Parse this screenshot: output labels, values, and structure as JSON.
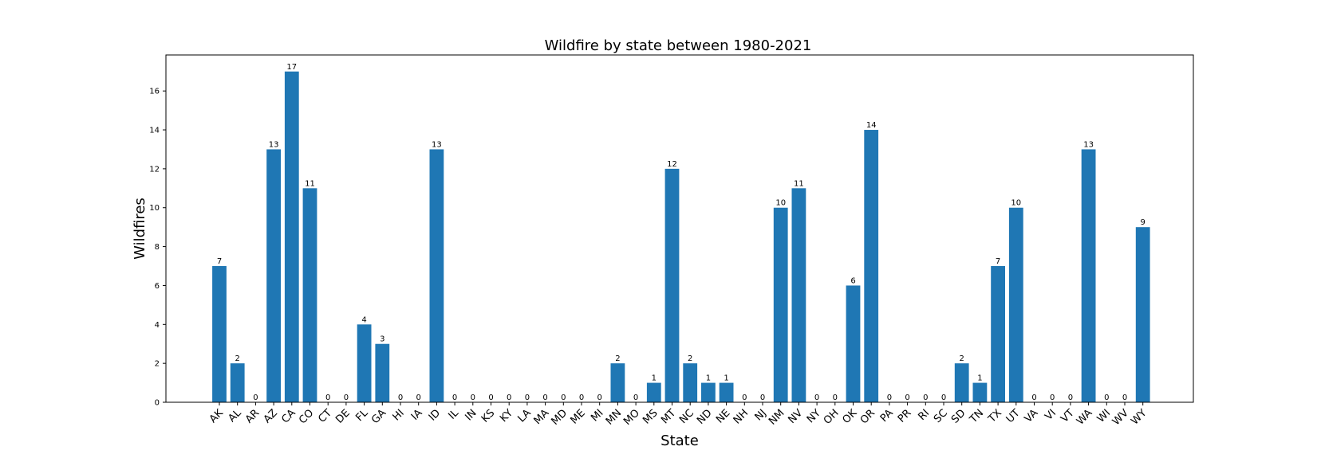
{
  "chart_data": {
    "type": "bar",
    "title": "Wildfire by state between 1980-2021",
    "xlabel": "State",
    "ylabel": "Wildfires",
    "ylim": [
      0,
      17.85
    ],
    "yticks": [
      0,
      2,
      4,
      6,
      8,
      10,
      12,
      14,
      16
    ],
    "grid": false,
    "bar_color": "#1f77b4",
    "categories": [
      "AK",
      "AL",
      "AR",
      "AZ",
      "CA",
      "CO",
      "CT",
      "DE",
      "FL",
      "GA",
      "HI",
      "IA",
      "ID",
      "IL",
      "IN",
      "KS",
      "KY",
      "LA",
      "MA",
      "MD",
      "ME",
      "MI",
      "MN",
      "MO",
      "MS",
      "MT",
      "NC",
      "ND",
      "NE",
      "NH",
      "NJ",
      "NM",
      "NV",
      "NY",
      "OH",
      "OK",
      "OR",
      "PA",
      "PR",
      "RI",
      "SC",
      "SD",
      "TN",
      "TX",
      "UT",
      "VA",
      "VI",
      "VT",
      "WA",
      "WI",
      "WV",
      "WY"
    ],
    "values": [
      7,
      2,
      0,
      13,
      17,
      11,
      0,
      0,
      4,
      3,
      0,
      0,
      13,
      0,
      0,
      0,
      0,
      0,
      0,
      0,
      0,
      0,
      2,
      0,
      1,
      12,
      2,
      1,
      1,
      0,
      0,
      10,
      11,
      0,
      0,
      6,
      14,
      0,
      0,
      0,
      0,
      2,
      1,
      7,
      10,
      0,
      0,
      0,
      13,
      0,
      0,
      9
    ]
  }
}
